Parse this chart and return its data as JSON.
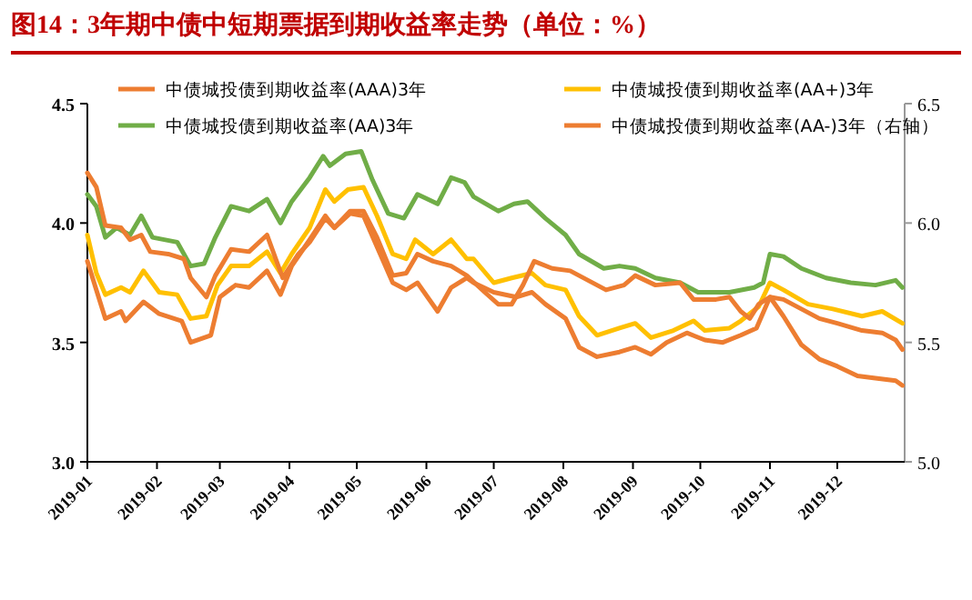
{
  "chart_data": {
    "type": "line",
    "title": "图14：3年期中债中短期票据到期收益率走势（单位：%）",
    "legend": "top",
    "grid": false,
    "marker": "none",
    "line_style": "solid",
    "xlim": [
      "2019-01-01",
      "2019-12-31"
    ],
    "xticks": [
      "2019-01",
      "2019-02",
      "2019-03",
      "2019-04",
      "2019-05",
      "2019-06",
      "2019-07",
      "2019-08",
      "2019-09",
      "2019-10",
      "2019-11",
      "2019-12"
    ],
    "ylim": [
      3.0,
      4.5
    ],
    "yticks": [
      {
        "value": 3.0,
        "label": "3.0"
      },
      {
        "value": 3.5,
        "label": "3.5"
      },
      {
        "value": 4.0,
        "label": "4.0"
      },
      {
        "value": 4.5,
        "label": "4.5"
      }
    ],
    "y2lim": [
      5.0,
      6.5
    ],
    "y2ticks": [
      {
        "value": 5.0,
        "label": "5.0"
      },
      {
        "value": 5.5,
        "label": "5.5"
      },
      {
        "value": 6.0,
        "label": "6.0"
      },
      {
        "value": 6.5,
        "label": "6.5"
      }
    ],
    "series": [
      {
        "name": "中债城投债到期收益率(AAA)3年",
        "color": "#ed7d31",
        "x": [
          "2019-01-01",
          "2019-01-05",
          "2019-01-09",
          "2019-01-16",
          "2019-01-18",
          "2019-01-26",
          "2019-02-02",
          "2019-02-12",
          "2019-02-16",
          "2019-02-25",
          "2019-03-01",
          "2019-03-08",
          "2019-03-14",
          "2019-03-22",
          "2019-03-28",
          "2019-04-02",
          "2019-04-10",
          "2019-04-17",
          "2019-04-21",
          "2019-04-28",
          "2019-05-04",
          "2019-05-10",
          "2019-05-17",
          "2019-05-23",
          "2019-05-28",
          "2019-06-06",
          "2019-06-12",
          "2019-06-19",
          "2019-06-22",
          "2019-07-01",
          "2019-07-11",
          "2019-07-18",
          "2019-07-24",
          "2019-08-02",
          "2019-08-08",
          "2019-08-16",
          "2019-08-26",
          "2019-09-02",
          "2019-09-09",
          "2019-09-16",
          "2019-09-25",
          "2019-10-03",
          "2019-10-11",
          "2019-10-19",
          "2019-10-26",
          "2019-11-01",
          "2019-11-07",
          "2019-11-15",
          "2019-11-23",
          "2019-12-01",
          "2019-12-12",
          "2019-12-21",
          "2019-12-27",
          "2019-12-30"
        ],
        "values": [
          3.84,
          3.72,
          3.6,
          3.63,
          3.59,
          3.67,
          3.62,
          3.59,
          3.5,
          3.53,
          3.69,
          3.74,
          3.73,
          3.8,
          3.7,
          3.82,
          3.93,
          4.03,
          3.98,
          4.04,
          4.03,
          3.9,
          3.75,
          3.72,
          3.75,
          3.63,
          3.73,
          3.77,
          3.75,
          3.71,
          3.69,
          3.71,
          3.66,
          3.6,
          3.48,
          3.44,
          3.46,
          3.48,
          3.45,
          3.5,
          3.54,
          3.51,
          3.5,
          3.53,
          3.56,
          3.69,
          3.68,
          3.64,
          3.6,
          3.58,
          3.55,
          3.54,
          3.51,
          3.47
        ]
      },
      {
        "name": "中债城投债到期收益率(AA+)3年",
        "color": "#ffc000",
        "x": [
          "2019-01-01",
          "2019-01-05",
          "2019-01-09",
          "2019-01-16",
          "2019-01-20",
          "2019-01-26",
          "2019-02-02",
          "2019-02-10",
          "2019-02-16",
          "2019-02-23",
          "2019-02-28",
          "2019-03-06",
          "2019-03-14",
          "2019-03-22",
          "2019-03-28",
          "2019-04-02",
          "2019-04-10",
          "2019-04-17",
          "2019-04-21",
          "2019-04-27",
          "2019-05-04",
          "2019-05-10",
          "2019-05-17",
          "2019-05-23",
          "2019-05-27",
          "2019-06-04",
          "2019-06-12",
          "2019-06-19",
          "2019-06-22",
          "2019-07-01",
          "2019-07-09",
          "2019-07-18",
          "2019-07-24",
          "2019-08-02",
          "2019-08-08",
          "2019-08-16",
          "2019-08-26",
          "2019-09-02",
          "2019-09-09",
          "2019-09-19",
          "2019-09-28",
          "2019-10-03",
          "2019-10-14",
          "2019-10-19",
          "2019-10-27",
          "2019-11-01",
          "2019-11-07",
          "2019-11-18",
          "2019-11-29",
          "2019-12-12",
          "2019-12-21",
          "2019-12-30"
        ],
        "values": [
          3.95,
          3.79,
          3.7,
          3.73,
          3.71,
          3.8,
          3.71,
          3.7,
          3.6,
          3.61,
          3.74,
          3.82,
          3.82,
          3.88,
          3.79,
          3.87,
          3.98,
          4.14,
          4.09,
          4.14,
          4.15,
          4.03,
          3.87,
          3.85,
          3.93,
          3.87,
          3.93,
          3.85,
          3.85,
          3.75,
          3.77,
          3.79,
          3.74,
          3.72,
          3.61,
          3.53,
          3.56,
          3.58,
          3.52,
          3.55,
          3.59,
          3.55,
          3.56,
          3.59,
          3.65,
          3.75,
          3.72,
          3.66,
          3.64,
          3.61,
          3.63,
          3.58
        ]
      },
      {
        "name": "中债城投债到期收益率(AA)3年",
        "color": "#70ad47",
        "x": [
          "2019-01-01",
          "2019-01-05",
          "2019-01-09",
          "2019-01-14",
          "2019-01-20",
          "2019-01-25",
          "2019-01-30",
          "2019-02-10",
          "2019-02-16",
          "2019-02-22",
          "2019-02-27",
          "2019-03-06",
          "2019-03-14",
          "2019-03-22",
          "2019-03-28",
          "2019-04-02",
          "2019-04-10",
          "2019-04-16",
          "2019-04-19",
          "2019-04-26",
          "2019-05-03",
          "2019-05-08",
          "2019-05-15",
          "2019-05-22",
          "2019-05-28",
          "2019-06-06",
          "2019-06-12",
          "2019-06-18",
          "2019-06-22",
          "2019-07-03",
          "2019-07-10",
          "2019-07-16",
          "2019-07-24",
          "2019-08-02",
          "2019-08-08",
          "2019-08-19",
          "2019-08-26",
          "2019-09-02",
          "2019-09-11",
          "2019-09-22",
          "2019-09-30",
          "2019-10-14",
          "2019-10-25",
          "2019-10-29",
          "2019-11-01",
          "2019-11-07",
          "2019-11-15",
          "2019-11-26",
          "2019-12-07",
          "2019-12-18",
          "2019-12-27",
          "2019-12-30"
        ],
        "values": [
          4.12,
          4.07,
          3.94,
          3.98,
          3.95,
          4.03,
          3.94,
          3.92,
          3.82,
          3.83,
          3.94,
          4.07,
          4.05,
          4.1,
          4.0,
          4.09,
          4.19,
          4.28,
          4.24,
          4.29,
          4.3,
          4.18,
          4.04,
          4.02,
          4.12,
          4.08,
          4.19,
          4.17,
          4.11,
          4.05,
          4.08,
          4.09,
          4.02,
          3.95,
          3.87,
          3.81,
          3.82,
          3.81,
          3.77,
          3.75,
          3.71,
          3.71,
          3.73,
          3.75,
          3.87,
          3.86,
          3.81,
          3.77,
          3.75,
          3.74,
          3.76,
          3.73
        ]
      },
      {
        "name": "中债城投债到期收益率(AA-)3年（右轴）",
        "color": "#ed7d31",
        "axis": "y2",
        "x": [
          "2019-01-01",
          "2019-01-05",
          "2019-01-09",
          "2019-01-16",
          "2019-01-20",
          "2019-01-25",
          "2019-01-29",
          "2019-02-06",
          "2019-02-13",
          "2019-02-16",
          "2019-02-23",
          "2019-02-27",
          "2019-03-06",
          "2019-03-14",
          "2019-03-22",
          "2019-03-29",
          "2019-04-05",
          "2019-04-10",
          "2019-04-17",
          "2019-04-21",
          "2019-04-28",
          "2019-05-04",
          "2019-05-10",
          "2019-05-17",
          "2019-05-23",
          "2019-05-28",
          "2019-06-04",
          "2019-06-12",
          "2019-06-19",
          "2019-06-27",
          "2019-07-03",
          "2019-07-09",
          "2019-07-14",
          "2019-07-19",
          "2019-07-27",
          "2019-08-04",
          "2019-08-12",
          "2019-08-20",
          "2019-08-28",
          "2019-09-02",
          "2019-09-11",
          "2019-09-22",
          "2019-09-28",
          "2019-10-08",
          "2019-10-14",
          "2019-10-19",
          "2019-10-23",
          "2019-10-27",
          "2019-11-01",
          "2019-11-07",
          "2019-11-15",
          "2019-11-23",
          "2019-12-01",
          "2019-12-10",
          "2019-12-18",
          "2019-12-27",
          "2019-12-30"
        ],
        "values": [
          6.21,
          6.15,
          5.99,
          5.98,
          5.93,
          5.95,
          5.88,
          5.87,
          5.85,
          5.77,
          5.69,
          5.78,
          5.89,
          5.88,
          5.95,
          5.77,
          5.87,
          5.92,
          6.02,
          5.98,
          6.05,
          6.05,
          5.94,
          5.78,
          5.79,
          5.87,
          5.84,
          5.82,
          5.78,
          5.71,
          5.66,
          5.66,
          5.74,
          5.84,
          5.81,
          5.8,
          5.76,
          5.72,
          5.74,
          5.78,
          5.74,
          5.75,
          5.68,
          5.68,
          5.69,
          5.63,
          5.6,
          5.66,
          5.69,
          5.61,
          5.49,
          5.43,
          5.4,
          5.36,
          5.35,
          5.34,
          5.32
        ]
      }
    ]
  }
}
